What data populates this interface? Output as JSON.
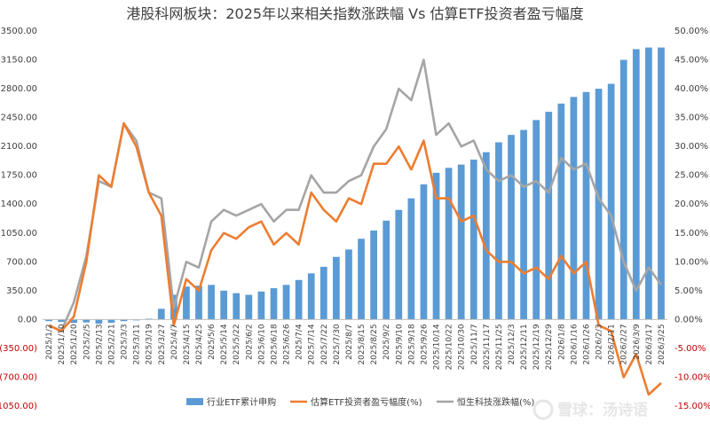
{
  "chart_data": {
    "type": "bar+line",
    "title": "港股科网板块：2025年以来相关指数涨跌幅 Vs 估算ETF投资者盈亏幅度",
    "xlabel": "",
    "ylabel_left": "",
    "ylabel_right": "",
    "left_axis": {
      "ylim": [
        -1050,
        3500
      ],
      "ticks": [
        "3500.00",
        "3150.00",
        "2800.00",
        "2450.00",
        "2100.00",
        "1750.00",
        "1400.00",
        "1050.00",
        "700.00",
        "350.00",
        "0.00",
        "(350.00)",
        "(700.00)",
        "(1050.00)"
      ]
    },
    "right_axis": {
      "ylim": [
        -15,
        50
      ],
      "ticks": [
        "50.00%",
        "45.00%",
        "40.00%",
        "35.00%",
        "30.00%",
        "25.00%",
        "20.00%",
        "15.00%",
        "10.00%",
        "5.00%",
        "0.00%",
        "-5.00%",
        "-10.00%",
        "-15.00%"
      ]
    },
    "x_tick_labels": [
      "2025/1/2",
      "2025/1/10",
      "2025/1/20",
      "2025/2/5",
      "2025/2/13",
      "2025/2/21",
      "2025/3/3",
      "2025/3/11",
      "2025/3/19",
      "2025/3/27",
      "2025/4/7",
      "2025/4/15",
      "2025/4/25",
      "2025/5/6",
      "2025/5/14",
      "2025/5/22",
      "2025/6/2",
      "2025/6/10",
      "2025/6/18",
      "2025/6/26",
      "2025/7/4",
      "2025/7/14",
      "2025/7/22",
      "2025/7/30",
      "2025/8/7",
      "2025/8/15",
      "2025/8/25",
      "2025/9/2",
      "2025/9/10",
      "2025/9/18",
      "2025/9/26",
      "2025/10/14",
      "2025/10/22",
      "2025/10/30",
      "2025/11/7",
      "2025/11/17",
      "2025/11/25",
      "2025/12/3",
      "2025/12/11",
      "2025/12/19",
      "2025/12/29",
      "2026/1/8",
      "2026/1/16",
      "2026/1/26",
      "2026/2/3",
      "2026/2/11",
      "2026/2/27",
      "2026/3/9",
      "2026/3/17",
      "2026/3/25"
    ],
    "series": [
      {
        "name": "行业ETF累计申购",
        "type": "bar",
        "axis": "left",
        "color": "#5b9bd5",
        "x": [
          "2025/1/2",
          "2025/1/10",
          "2025/1/20",
          "2025/2/5",
          "2025/2/13",
          "2025/2/21",
          "2025/3/3",
          "2025/3/11",
          "2025/3/19",
          "2025/3/27",
          "2025/4/7",
          "2025/4/15",
          "2025/4/25",
          "2025/5/6",
          "2025/5/14",
          "2025/5/22",
          "2025/6/2",
          "2025/6/10",
          "2025/6/18",
          "2025/6/26",
          "2025/7/4",
          "2025/7/14",
          "2025/7/22",
          "2025/7/30",
          "2025/8/7",
          "2025/8/15",
          "2025/8/25",
          "2025/9/2",
          "2025/9/10",
          "2025/9/18",
          "2025/9/26",
          "2025/10/14",
          "2025/10/22",
          "2025/10/30",
          "2025/11/7",
          "2025/11/17",
          "2025/11/25",
          "2025/12/3",
          "2025/12/11",
          "2025/12/19",
          "2025/12/29",
          "2026/1/8",
          "2026/1/16",
          "2026/1/26",
          "2026/2/3",
          "2026/2/11",
          "2026/2/27",
          "2026/3/9",
          "2026/3/17",
          "2026/3/25"
        ],
        "values": [
          -20,
          -30,
          -40,
          -35,
          -50,
          -40,
          -20,
          -10,
          10,
          130,
          300,
          400,
          410,
          420,
          350,
          320,
          300,
          340,
          380,
          420,
          480,
          560,
          640,
          760,
          850,
          980,
          1080,
          1200,
          1330,
          1470,
          1640,
          1780,
          1840,
          1880,
          1940,
          2030,
          2150,
          2240,
          2300,
          2420,
          2520,
          2620,
          2700,
          2760,
          2800,
          2860,
          3150,
          3280,
          3300,
          3300
        ]
      },
      {
        "name": "估算ETF投资者盈亏幅度(%)",
        "type": "line",
        "axis": "right",
        "color": "#ed7d31",
        "x": [
          "2025/1/2",
          "2025/1/10",
          "2025/1/20",
          "2025/2/5",
          "2025/2/13",
          "2025/2/21",
          "2025/3/3",
          "2025/3/11",
          "2025/3/19",
          "2025/3/27",
          "2025/4/7",
          "2025/4/15",
          "2025/4/25",
          "2025/5/6",
          "2025/5/14",
          "2025/5/22",
          "2025/6/2",
          "2025/6/10",
          "2025/6/18",
          "2025/6/26",
          "2025/7/4",
          "2025/7/14",
          "2025/7/22",
          "2025/7/30",
          "2025/8/7",
          "2025/8/15",
          "2025/8/25",
          "2025/9/2",
          "2025/9/10",
          "2025/9/18",
          "2025/9/26",
          "2025/10/14",
          "2025/10/22",
          "2025/10/30",
          "2025/11/7",
          "2025/11/17",
          "2025/11/25",
          "2025/12/3",
          "2025/12/11",
          "2025/12/19",
          "2025/12/29",
          "2026/1/8",
          "2026/1/16",
          "2026/1/26",
          "2026/2/3",
          "2026/2/11",
          "2026/2/27",
          "2026/3/9",
          "2026/3/17",
          "2026/3/25"
        ],
        "values": [
          -1,
          -2,
          0.5,
          10,
          25,
          23,
          34,
          30,
          22,
          18,
          -1,
          7,
          5,
          12,
          15,
          14,
          16,
          17,
          13,
          15,
          13,
          22,
          19,
          17,
          21,
          20,
          27,
          27,
          30,
          26,
          31,
          21,
          21,
          17,
          18,
          12,
          10,
          10,
          8,
          9,
          7,
          11,
          8,
          10,
          -1,
          -2,
          -10,
          -6,
          -13,
          -11
        ]
      },
      {
        "name": "恒生科技涨跌幅(%)",
        "type": "line",
        "axis": "right",
        "color": "#a5a5a5",
        "x": [
          "2025/1/2",
          "2025/1/10",
          "2025/1/20",
          "2025/2/5",
          "2025/2/13",
          "2025/2/21",
          "2025/3/3",
          "2025/3/11",
          "2025/3/19",
          "2025/3/27",
          "2025/4/7",
          "2025/4/15",
          "2025/4/25",
          "2025/5/6",
          "2025/5/14",
          "2025/5/22",
          "2025/6/2",
          "2025/6/10",
          "2025/6/18",
          "2025/6/26",
          "2025/7/4",
          "2025/7/14",
          "2025/7/22",
          "2025/7/30",
          "2025/8/7",
          "2025/8/15",
          "2025/8/25",
          "2025/9/2",
          "2025/9/10",
          "2025/9/18",
          "2025/9/26",
          "2025/10/14",
          "2025/10/22",
          "2025/10/30",
          "2025/11/7",
          "2025/11/17",
          "2025/11/25",
          "2025/12/3",
          "2025/12/11",
          "2025/12/19",
          "2025/12/29",
          "2026/1/8",
          "2026/1/16",
          "2026/1/26",
          "2026/2/3",
          "2026/2/11",
          "2026/2/27",
          "2026/3/9",
          "2026/3/17",
          "2026/3/25"
        ],
        "values": [
          -1,
          -2,
          3,
          11,
          24,
          23,
          34,
          31,
          22,
          21,
          2,
          10,
          9,
          17,
          19,
          18,
          19,
          20,
          17,
          19,
          19,
          25,
          22,
          22,
          24,
          25,
          30,
          33,
          40,
          38,
          45,
          32,
          34,
          30,
          31,
          26,
          24,
          25,
          23,
          24,
          22,
          28,
          26,
          27,
          21,
          18,
          10,
          5,
          9,
          6
        ]
      }
    ],
    "legend": {
      "position": "bottom",
      "items": [
        "行业ETF累计申购",
        "估算ETF投资者盈亏幅度(%)",
        "恒生科技涨跌幅(%)"
      ]
    },
    "grid": false
  },
  "watermark": "雪球：汤诗语"
}
